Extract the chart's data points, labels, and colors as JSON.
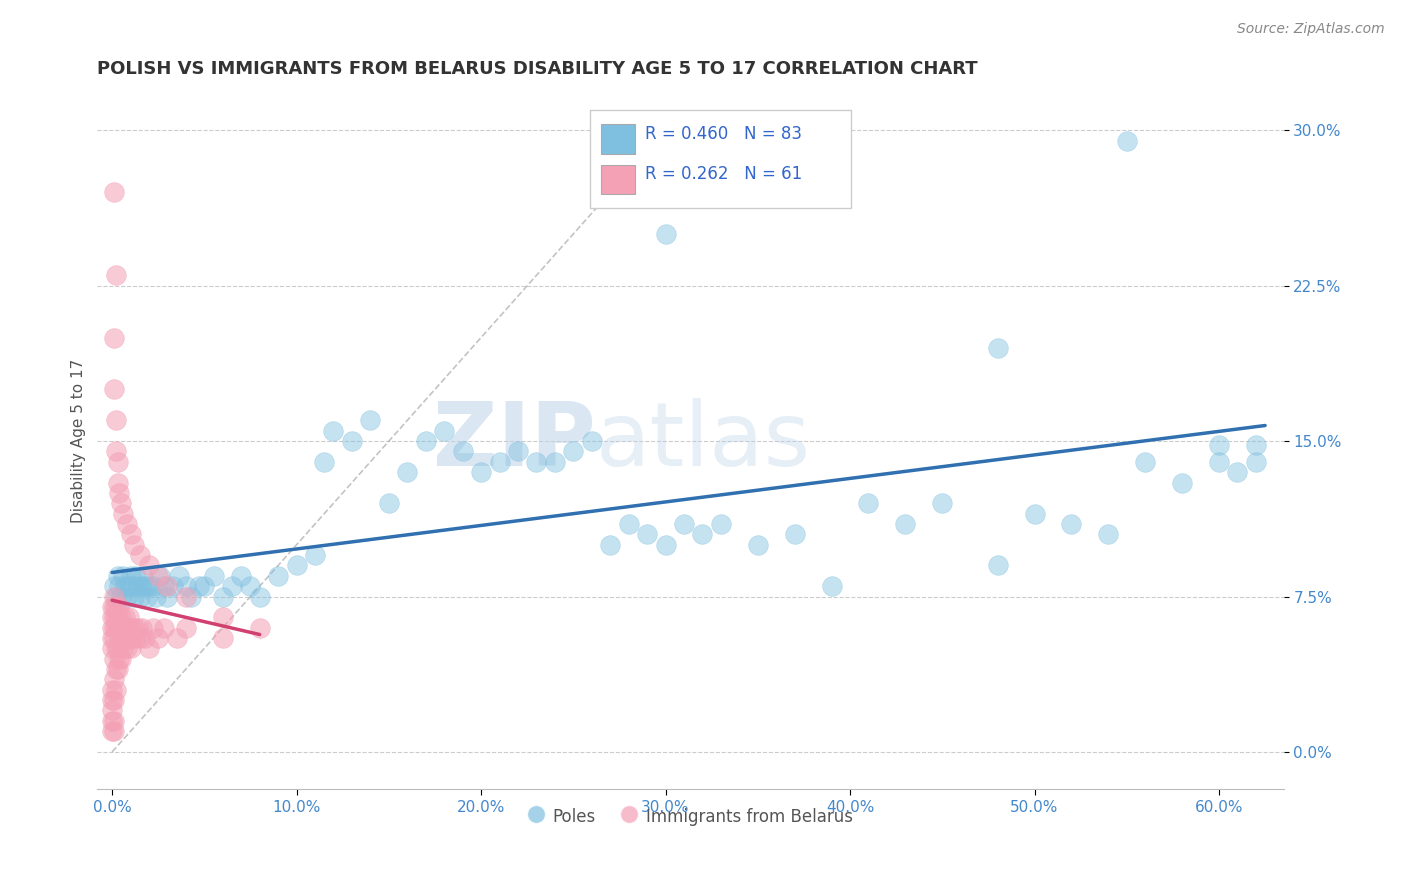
{
  "title": "POLISH VS IMMIGRANTS FROM BELARUS DISABILITY AGE 5 TO 17 CORRELATION CHART",
  "source": "Source: ZipAtlas.com",
  "ylabel_label": "Disability Age 5 to 17",
  "x_tick_labels": [
    "0.0%",
    "10.0%",
    "20.0%",
    "30.0%",
    "40.0%",
    "50.0%",
    "60.0%"
  ],
  "x_tick_values": [
    0.0,
    0.1,
    0.2,
    0.3,
    0.4,
    0.5,
    0.6
  ],
  "y_tick_labels": [
    "0.0%",
    "7.5%",
    "15.0%",
    "22.5%",
    "30.0%"
  ],
  "y_tick_values": [
    0.0,
    0.075,
    0.15,
    0.225,
    0.3
  ],
  "xlim": [
    -0.008,
    0.635
  ],
  "ylim": [
    -0.018,
    0.318
  ],
  "blue_color": "#7fbfdf",
  "pink_color": "#f4a0b5",
  "blue_line_color": "#3070b0",
  "pink_line_color": "#d04070",
  "legend_blue_label": "Poles",
  "legend_pink_label": "Immigrants from Belarus",
  "R_blue": 0.46,
  "N_blue": 83,
  "R_pink": 0.262,
  "N_pink": 61,
  "background_color": "#ffffff",
  "grid_color": "#cccccc",
  "watermark_text": "ZIPatlas",
  "title_fontsize": 13,
  "axis_label_fontsize": 11,
  "tick_fontsize": 11,
  "legend_fontsize": 12,
  "source_fontsize": 10,
  "blue_x": [
    0.001,
    0.002,
    0.003,
    0.004,
    0.005,
    0.006,
    0.007,
    0.008,
    0.009,
    0.01,
    0.011,
    0.012,
    0.013,
    0.014,
    0.015,
    0.016,
    0.017,
    0.018,
    0.019,
    0.02,
    0.022,
    0.024,
    0.026,
    0.028,
    0.03,
    0.033,
    0.036,
    0.04,
    0.043,
    0.047,
    0.05,
    0.055,
    0.06,
    0.065,
    0.07,
    0.075,
    0.08,
    0.09,
    0.1,
    0.11,
    0.115,
    0.12,
    0.13,
    0.14,
    0.15,
    0.16,
    0.17,
    0.18,
    0.19,
    0.2,
    0.21,
    0.22,
    0.23,
    0.24,
    0.25,
    0.26,
    0.27,
    0.28,
    0.29,
    0.3,
    0.31,
    0.32,
    0.33,
    0.35,
    0.37,
    0.39,
    0.41,
    0.43,
    0.45,
    0.48,
    0.5,
    0.52,
    0.54,
    0.56,
    0.58,
    0.6,
    0.61,
    0.62,
    0.3,
    0.48,
    0.55,
    0.62,
    0.6
  ],
  "blue_y": [
    0.08,
    0.075,
    0.085,
    0.08,
    0.075,
    0.085,
    0.08,
    0.075,
    0.08,
    0.085,
    0.08,
    0.075,
    0.085,
    0.08,
    0.075,
    0.08,
    0.085,
    0.08,
    0.075,
    0.08,
    0.08,
    0.075,
    0.085,
    0.08,
    0.075,
    0.08,
    0.085,
    0.08,
    0.075,
    0.08,
    0.08,
    0.085,
    0.075,
    0.08,
    0.085,
    0.08,
    0.075,
    0.085,
    0.09,
    0.095,
    0.14,
    0.155,
    0.15,
    0.16,
    0.12,
    0.135,
    0.15,
    0.155,
    0.145,
    0.135,
    0.14,
    0.145,
    0.14,
    0.14,
    0.145,
    0.15,
    0.1,
    0.11,
    0.105,
    0.1,
    0.11,
    0.105,
    0.11,
    0.1,
    0.105,
    0.08,
    0.12,
    0.11,
    0.12,
    0.09,
    0.115,
    0.11,
    0.105,
    0.14,
    0.13,
    0.14,
    0.135,
    0.14,
    0.25,
    0.195,
    0.295,
    0.148,
    0.148
  ],
  "pink_x": [
    0.0,
    0.0,
    0.0,
    0.0,
    0.0,
    0.0,
    0.0,
    0.0,
    0.0,
    0.0,
    0.001,
    0.001,
    0.001,
    0.001,
    0.001,
    0.001,
    0.001,
    0.001,
    0.001,
    0.001,
    0.002,
    0.002,
    0.002,
    0.002,
    0.002,
    0.002,
    0.003,
    0.003,
    0.003,
    0.003,
    0.004,
    0.004,
    0.004,
    0.005,
    0.005,
    0.005,
    0.006,
    0.006,
    0.007,
    0.007,
    0.008,
    0.008,
    0.009,
    0.009,
    0.01,
    0.01,
    0.011,
    0.012,
    0.013,
    0.014,
    0.015,
    0.016,
    0.018,
    0.02,
    0.022,
    0.025,
    0.028,
    0.035,
    0.04,
    0.06,
    0.08
  ],
  "pink_y": [
    0.05,
    0.055,
    0.06,
    0.065,
    0.07,
    0.03,
    0.025,
    0.02,
    0.015,
    0.01,
    0.055,
    0.06,
    0.065,
    0.07,
    0.075,
    0.045,
    0.035,
    0.025,
    0.015,
    0.01,
    0.06,
    0.065,
    0.07,
    0.05,
    0.04,
    0.03,
    0.065,
    0.06,
    0.05,
    0.04,
    0.07,
    0.06,
    0.045,
    0.065,
    0.055,
    0.045,
    0.06,
    0.05,
    0.065,
    0.055,
    0.06,
    0.05,
    0.065,
    0.055,
    0.06,
    0.05,
    0.055,
    0.06,
    0.055,
    0.06,
    0.055,
    0.06,
    0.055,
    0.05,
    0.06,
    0.055,
    0.06,
    0.055,
    0.06,
    0.055,
    0.06
  ],
  "pink_outlier_x": [
    0.001,
    0.002,
    0.001,
    0.001,
    0.002,
    0.002,
    0.003,
    0.003,
    0.004,
    0.005,
    0.006,
    0.008,
    0.01,
    0.012,
    0.015,
    0.02,
    0.025,
    0.03,
    0.04,
    0.06
  ],
  "pink_outlier_y": [
    0.27,
    0.23,
    0.2,
    0.175,
    0.16,
    0.145,
    0.14,
    0.13,
    0.125,
    0.12,
    0.115,
    0.11,
    0.105,
    0.1,
    0.095,
    0.09,
    0.085,
    0.08,
    0.075,
    0.065
  ]
}
